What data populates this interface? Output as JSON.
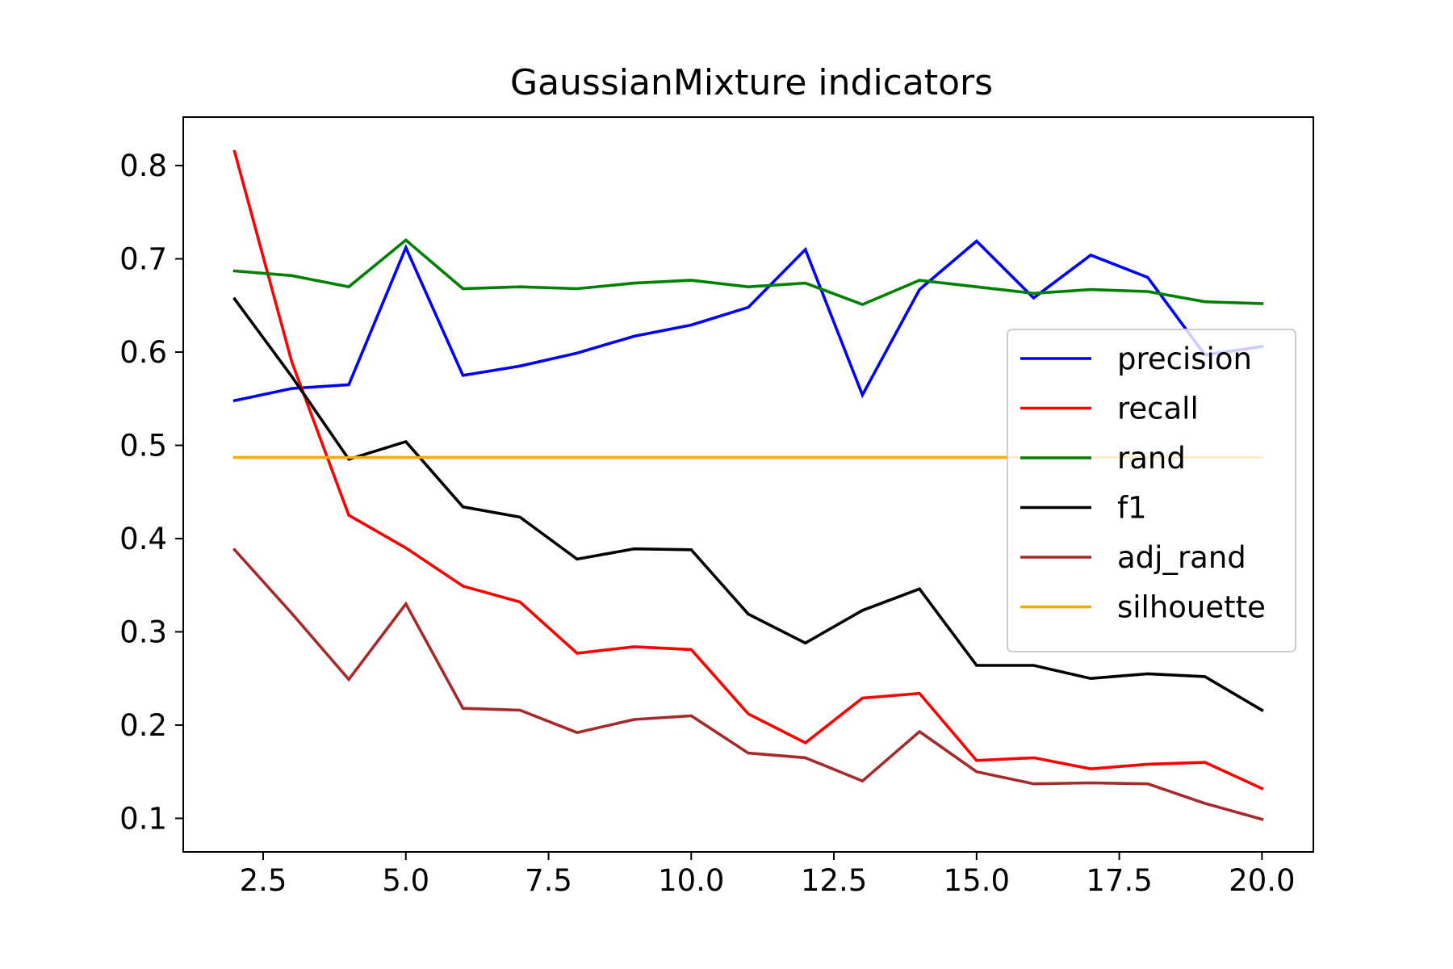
{
  "chart_data": {
    "type": "line",
    "title": "GaussianMixture indicators",
    "xlabel": "",
    "ylabel": "",
    "xlim": [
      1.1,
      20.9
    ],
    "ylim": [
      0.064,
      0.852
    ],
    "xticks": [
      2.5,
      5.0,
      7.5,
      10.0,
      12.5,
      15.0,
      17.5,
      20.0
    ],
    "xtick_labels": [
      "2.5",
      "5.0",
      "7.5",
      "10.0",
      "12.5",
      "15.0",
      "17.5",
      "20.0"
    ],
    "yticks": [
      0.1,
      0.2,
      0.3,
      0.4,
      0.5,
      0.6,
      0.7,
      0.8
    ],
    "ytick_labels": [
      "0.1",
      "0.2",
      "0.3",
      "0.4",
      "0.5",
      "0.6",
      "0.7",
      "0.8"
    ],
    "grid": false,
    "legend_position": "center-right",
    "x": [
      2,
      3,
      4,
      5,
      6,
      7,
      8,
      9,
      10,
      11,
      12,
      13,
      14,
      15,
      16,
      17,
      18,
      19,
      20
    ],
    "series": [
      {
        "name": "precision",
        "color": "#0000ff",
        "values": [
          0.548,
          0.561,
          0.565,
          0.712,
          0.575,
          0.585,
          0.599,
          0.617,
          0.629,
          0.648,
          0.71,
          0.554,
          0.667,
          0.719,
          0.658,
          0.704,
          0.68,
          0.597,
          0.606
        ]
      },
      {
        "name": "recall",
        "color": "#ff0000",
        "values": [
          0.815,
          0.59,
          0.425,
          0.39,
          0.349,
          0.332,
          0.277,
          0.284,
          0.281,
          0.212,
          0.181,
          0.229,
          0.234,
          0.162,
          0.165,
          0.153,
          0.158,
          0.16,
          0.132
        ]
      },
      {
        "name": "rand",
        "color": "#008000",
        "values": [
          0.687,
          0.682,
          0.67,
          0.72,
          0.668,
          0.67,
          0.668,
          0.674,
          0.677,
          0.67,
          0.674,
          0.651,
          0.677,
          0.67,
          0.663,
          0.667,
          0.665,
          0.654,
          0.652
        ]
      },
      {
        "name": "f1",
        "color": "#000000",
        "values": [
          0.657,
          0.574,
          0.485,
          0.504,
          0.434,
          0.423,
          0.378,
          0.389,
          0.388,
          0.319,
          0.288,
          0.323,
          0.346,
          0.264,
          0.264,
          0.25,
          0.255,
          0.252,
          0.216
        ]
      },
      {
        "name": "adj_rand",
        "color": "#a52a2a",
        "values": [
          0.388,
          0.32,
          0.249,
          0.33,
          0.218,
          0.216,
          0.192,
          0.206,
          0.21,
          0.17,
          0.165,
          0.14,
          0.193,
          0.15,
          0.137,
          0.138,
          0.137,
          0.116,
          0.099
        ]
      },
      {
        "name": "silhouette",
        "color": "#ffa500",
        "values": [
          0.487,
          0.487,
          0.487,
          0.487,
          0.487,
          0.487,
          0.487,
          0.487,
          0.487,
          0.487,
          0.487,
          0.487,
          0.487,
          0.487,
          0.487,
          0.487,
          0.487,
          0.487,
          0.487
        ]
      }
    ]
  }
}
